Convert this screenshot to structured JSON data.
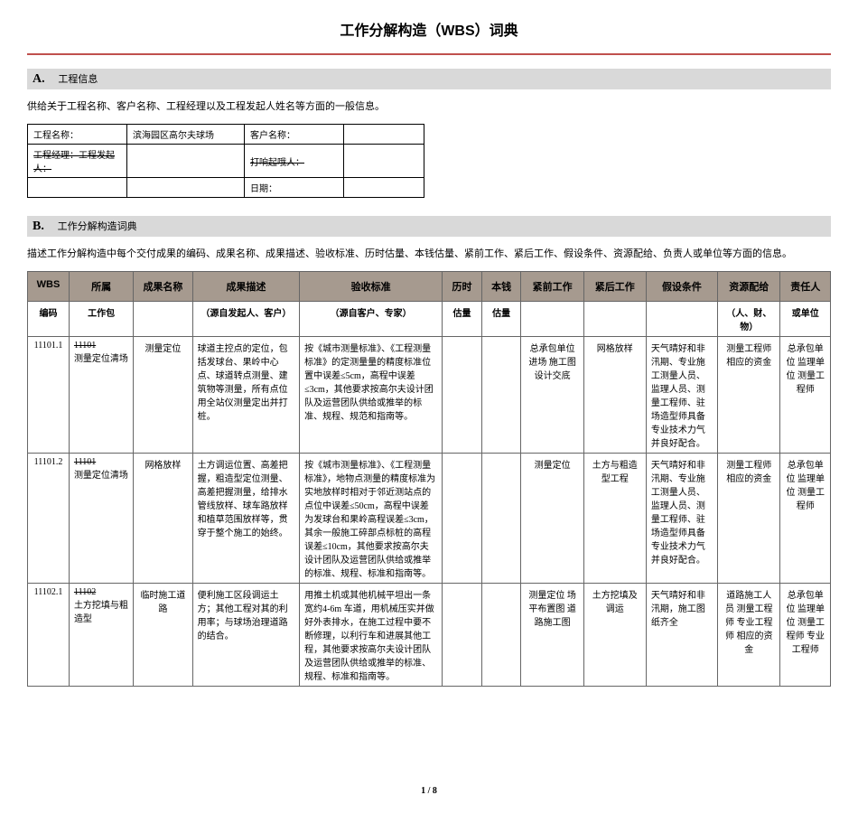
{
  "title": "工作分解构造（WBS）词典",
  "sectionA": {
    "letter": "A.",
    "label": "工程信息",
    "desc": "供给关于工程名称、客户名称、工程经理以及工程发起人姓名等方面的一般信息。",
    "rows": [
      {
        "l1": "工程名称：",
        "v1": "滨海园区高尔夫球场",
        "l2": "客户名称："
      },
      {
        "l1": "工程经理：工程发起人：",
        "v1": "",
        "l2": "打响起哦人："
      },
      {
        "l1": "",
        "v1": "",
        "l2": "日期："
      }
    ]
  },
  "sectionB": {
    "letter": "B.",
    "label": "工作分解构造词典",
    "desc": "描述工作分解构造中每个交付成果的编码、成果名称、成果描述、验收标准、历时估量、本钱估量、紧前工作、紧后工作、假设条件、资源配给、负责人或单位等方面的信息。"
  },
  "headers": {
    "wbs": "WBS",
    "pkg": "所属",
    "name": "成果名称",
    "desc": "成果描述",
    "criteria": "验收标准",
    "dur": "历时",
    "cost": "本钱",
    "pre": "紧前工作",
    "post": "紧后工作",
    "assume": "假设条件",
    "resource": "资源配给",
    "resp": "责任人"
  },
  "subheaders": {
    "wbs": "编码",
    "pkg": "工作包",
    "desc": "（源自发起人、客户）",
    "criteria": "（源自客户、专家）",
    "dur": "估量",
    "cost": "估量",
    "resource": "（人、财、物）",
    "resp": "或单位"
  },
  "rows": [
    {
      "wbs": "11101.1",
      "pkg_code": "11101",
      "pkg_name": "测量定位清场",
      "name": "测量定位",
      "desc": "球道主控点的定位，包括发球台、果岭中心点、球道转点测量、建筑物等测量，所有点位用全站仪测量定出并打桩。",
      "criteria": "按《城市测量标准》、《工程测量标准》的定测量量的精度标准位置中误差≤5cm，高程中误差≤3cm，其他要求按高尔夫设计团队及运营团队供给或推举的标准、规程、规范和指南等。",
      "dur": "",
      "cost": "",
      "pre": "总承包单位进场 施工图设计交底",
      "post": "网格放样",
      "assume": "天气晴好和非汛期、专业施工测量人员、监理人员、测量工程师、驻场造型师具备专业技术力气并良好配合。",
      "resource": "测量工程师 相应的资金",
      "resp": "总承包单位 监理单位 测量工程师"
    },
    {
      "wbs": "11101.2",
      "pkg_code": "11101",
      "pkg_name": "测量定位清场",
      "name": "网格放样",
      "desc": "土方调运位置、高差把握，粗造型定位测量、高差把握测量，给排水管线放样、球车路放样和植草范围放样等，贯穿于整个施工的始终。",
      "criteria": "按《城市测量标准》、《工程测量标准》，地物点测量的精度标准为实地放样时相对于邻近测站点的点位中误差≤50cm，高程中误差为发球台和果岭高程误差≤3cm，其余一般施工碎部点标桩的高程误差≤10cm，其他要求按高尔夫设计团队及运营团队供给或推举的标准、规程、标准和指南等。",
      "dur": "",
      "cost": "",
      "pre": "测量定位",
      "post": "土方与粗造型工程",
      "assume": "天气晴好和非汛期、专业施工测量人员、监理人员、测量工程师、驻场造型师具备专业技术力气并良好配合。",
      "resource": "测量工程师 相应的资金",
      "resp": "总承包单位 监理单位 测量工程师"
    },
    {
      "wbs": "11102.1",
      "pkg_code": "11102",
      "pkg_name": "土方挖填与粗造型",
      "name": "临时施工道路",
      "desc": "便利施工区段调运土方；其他工程对其的利用率；与球场治理道路的结合。",
      "criteria": "用推土机或其他机械平坦出一条宽约4-6m 车道，用机械压实并做好外表排水，在施工过程中要不断修理，以利行车和进展其他工程，其他要求按高尔夫设计团队及运营团队供给或推举的标准、规程、标准和指南等。",
      "dur": "",
      "cost": "",
      "pre": "测量定位 场平布置图 道路施工图",
      "post": "土方挖填及调运",
      "assume": "天气晴好和非汛期，施工图纸齐全",
      "resource": "道路施工人员 测量工程师 专业工程师 相应的资金",
      "resp": "总承包单位 监理单位 测量工程师 专业工程师"
    }
  ],
  "footer": "1 / 8"
}
